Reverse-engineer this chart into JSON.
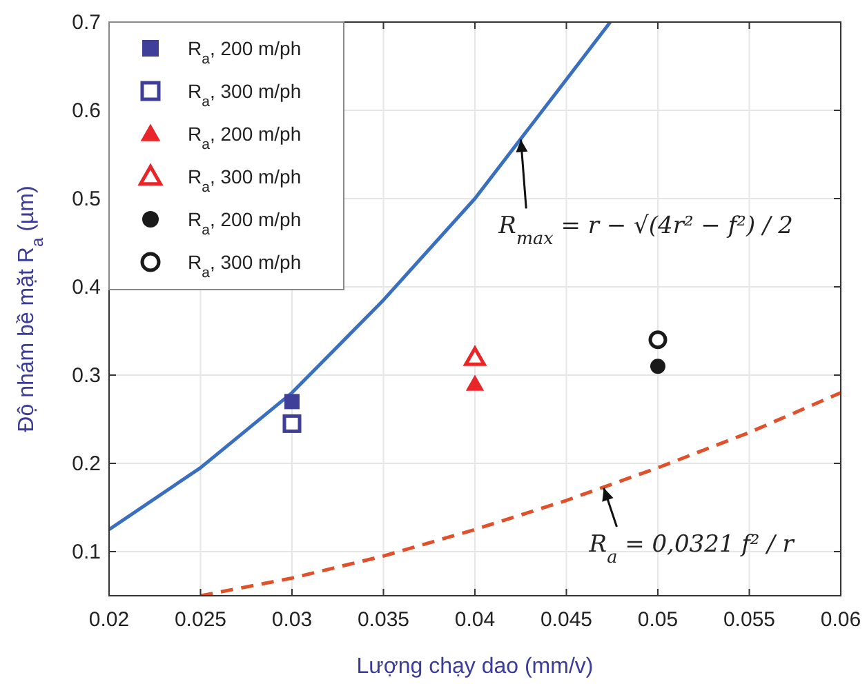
{
  "chart_data": {
    "type": "scatter",
    "xlabel": "Lượng chạy dao (mm/v)",
    "ylabel": "Độ nhám bề mặt R$_{a}$ (µm)",
    "xlim": [
      0.02,
      0.06
    ],
    "xticks": [
      0.02,
      0.025,
      0.03,
      0.035,
      0.04,
      0.045,
      0.05,
      0.055,
      0.06
    ],
    "ylim": [
      0.05,
      0.7
    ],
    "yticks": [
      0.1,
      0.2,
      0.3,
      0.4,
      0.5,
      0.6,
      0.7
    ],
    "grid": true,
    "legend": "top left",
    "series": [
      {
        "type": "line",
        "color": "#3a6fc0",
        "line_style": "solid",
        "marker": "none",
        "x": [
          0.02,
          0.025,
          0.03,
          0.035,
          0.04,
          0.045,
          0.0474
        ],
        "values": [
          0.125,
          0.195,
          0.28,
          0.385,
          0.5,
          0.635,
          0.7
        ]
      },
      {
        "type": "line",
        "color": "#e0502a",
        "line_style": "dashed",
        "marker": "none",
        "x": [
          0.025,
          0.03,
          0.035,
          0.04,
          0.045,
          0.05,
          0.055,
          0.06
        ],
        "values": [
          0.05,
          0.07,
          0.095,
          0.125,
          0.158,
          0.195,
          0.235,
          0.28
        ]
      },
      {
        "name": "R$_{a}$, 200 m/ph",
        "color": "#3f3f9a",
        "marker": "square",
        "x": [
          0.03
        ],
        "values": [
          0.27
        ]
      },
      {
        "name": "R$_{a}$, 300 m/ph",
        "color": "#3f3f9a",
        "marker": "square-open",
        "x": [
          0.03
        ],
        "values": [
          0.245
        ]
      },
      {
        "name": "R$_{a}$, 200 m/ph",
        "color": "#e8262a",
        "marker": "triangle",
        "x": [
          0.04
        ],
        "values": [
          0.29
        ]
      },
      {
        "name": "R$_{a}$, 300 m/ph",
        "color": "#e8262a",
        "marker": "triangle-open",
        "x": [
          0.04
        ],
        "values": [
          0.32
        ]
      },
      {
        "name": "R$_{a}$, 200 m/ph",
        "color": "#1a1a1a",
        "marker": "circle",
        "x": [
          0.05
        ],
        "values": [
          0.31
        ]
      },
      {
        "name": "R$_{a}$, 300 m/ph",
        "color": "#1a1a1a",
        "marker": "circle-open",
        "x": [
          0.05
        ],
        "values": [
          0.34
        ]
      }
    ],
    "annotations": [
      {
        "text": "R$_{max}$ = r − √(4r² − f²) / 2",
        "x": 0.0425,
        "y": 0.57
      },
      {
        "text": "R$_{a}$ = 0,0321 f² / r",
        "x": 0.047,
        "y": 0.175
      }
    ]
  }
}
